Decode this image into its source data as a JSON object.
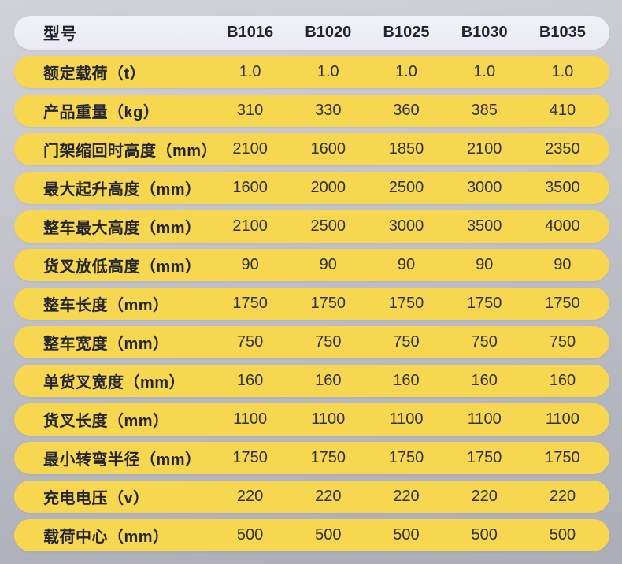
{
  "colors": {
    "row_yellow": "#f7d650",
    "header_pill": "#ecEEf4",
    "text_dark": "#24262f",
    "background_top": "#d1d2d8",
    "background_bottom": "#acaeb7"
  },
  "chart_data": {
    "type": "table",
    "columns": [
      "型号",
      "B1016",
      "B1020",
      "B1025",
      "B1030",
      "B1035"
    ],
    "rows": [
      {
        "label": "额定载荷（t）",
        "values": [
          "1.0",
          "1.0",
          "1.0",
          "1.0",
          "1.0"
        ]
      },
      {
        "label": "产品重量（kg）",
        "values": [
          "310",
          "330",
          "360",
          "385",
          "410"
        ]
      },
      {
        "label": "门架缩回时高度（mm）",
        "values": [
          "2100",
          "1600",
          "1850",
          "2100",
          "2350"
        ]
      },
      {
        "label": "最大起升高度（mm）",
        "values": [
          "1600",
          "2000",
          "2500",
          "3000",
          "3500"
        ]
      },
      {
        "label": "整车最大高度（mm）",
        "values": [
          "2100",
          "2500",
          "3000",
          "3500",
          "4000"
        ]
      },
      {
        "label": "货叉放低高度（mm）",
        "values": [
          "90",
          "90",
          "90",
          "90",
          "90"
        ]
      },
      {
        "label": "整车长度（mm）",
        "values": [
          "1750",
          "1750",
          "1750",
          "1750",
          "1750"
        ]
      },
      {
        "label": "整车宽度（mm）",
        "values": [
          "750",
          "750",
          "750",
          "750",
          "750"
        ]
      },
      {
        "label": "单货叉宽度（mm）",
        "values": [
          "160",
          "160",
          "160",
          "160",
          "160"
        ]
      },
      {
        "label": "货叉长度（mm）",
        "values": [
          "1100",
          "1100",
          "1100",
          "1100",
          "1100"
        ]
      },
      {
        "label": "最小转弯半径（mm）",
        "values": [
          "1750",
          "1750",
          "1750",
          "1750",
          "1750"
        ]
      },
      {
        "label": "充电电压（v）",
        "values": [
          "220",
          "220",
          "220",
          "220",
          "220"
        ]
      },
      {
        "label": "载荷中心（mm）",
        "values": [
          "500",
          "500",
          "500",
          "500",
          "500"
        ]
      }
    ]
  }
}
